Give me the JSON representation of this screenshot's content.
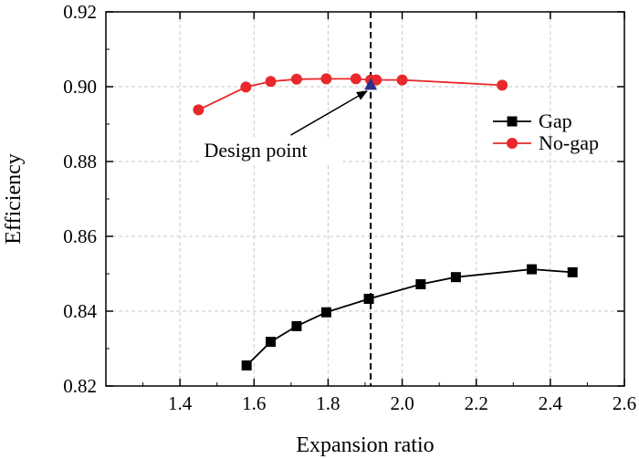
{
  "chart_data": {
    "type": "line",
    "xlabel": "Expansion ratio",
    "ylabel": "Efficiency",
    "xlim": [
      1.2,
      2.6
    ],
    "ylim": [
      0.82,
      0.92
    ],
    "x_ticks": [
      1.4,
      1.6,
      1.8,
      2.0,
      2.2,
      2.4,
      2.6
    ],
    "y_ticks": [
      0.82,
      0.84,
      0.86,
      0.88,
      0.9,
      0.92
    ],
    "x_tick_labels": [
      "1.4",
      "1.6",
      "1.8",
      "2.0",
      "2.2",
      "2.4",
      "2.6"
    ],
    "y_tick_labels": [
      "0.82",
      "0.84",
      "0.86",
      "0.88",
      "0.90",
      "0.92"
    ],
    "grid": true,
    "legend_position": "right",
    "series": [
      {
        "name": "Gap",
        "color": "#000000",
        "marker": "square",
        "x": [
          1.58,
          1.645,
          1.715,
          1.795,
          1.91,
          2.05,
          2.145,
          2.35,
          2.46
        ],
        "y": [
          0.8255,
          0.8318,
          0.836,
          0.8397,
          0.8433,
          0.8472,
          0.8491,
          0.8512,
          0.8504
        ]
      },
      {
        "name": "No-gap",
        "color": "#e8282a",
        "marker": "circle",
        "x": [
          1.45,
          1.578,
          1.645,
          1.715,
          1.795,
          1.875,
          1.915,
          1.93,
          2.0,
          2.27
        ],
        "y": [
          0.8938,
          0.8999,
          0.9014,
          0.902,
          0.9021,
          0.9021,
          0.9018,
          0.9018,
          0.9018,
          0.9004
        ]
      }
    ],
    "reference_line": {
      "x": 1.915,
      "style": "dashed",
      "color": "#000000"
    },
    "design_point": {
      "x": 1.915,
      "y": 0.9004,
      "marker": "triangle",
      "color": "#2b2f8c"
    },
    "annotations": [
      {
        "text": "Design point",
        "text_x": 1.465,
        "text_y": 0.8812,
        "arrow_to_x": 1.905,
        "arrow_to_y": 0.9003
      }
    ]
  }
}
